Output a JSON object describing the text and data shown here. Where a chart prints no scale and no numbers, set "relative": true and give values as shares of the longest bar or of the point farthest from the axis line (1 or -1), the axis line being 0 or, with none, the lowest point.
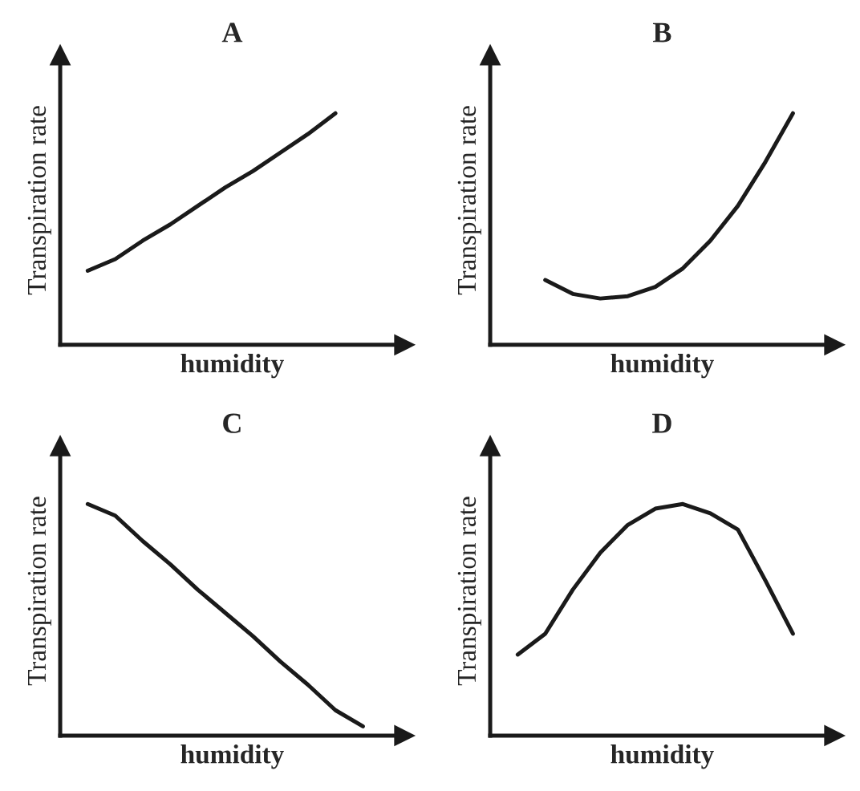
{
  "chart_data": [
    {
      "type": "line",
      "title": "A",
      "xlabel": "humidity",
      "ylabel": "Transpiration rate",
      "relative": true,
      "tick_labels": false,
      "categories": [
        null,
        null,
        null,
        null,
        null,
        null,
        null,
        null,
        null,
        null,
        null
      ],
      "series": [
        {
          "color": "#1a1a1a",
          "values": [
            0.32,
            0.37,
            0.45,
            0.52,
            0.6,
            0.68,
            0.75,
            0.83,
            0.91,
            1.0,
            null
          ]
        }
      ]
    },
    {
      "type": "line",
      "title": "B",
      "xlabel": "humidity",
      "ylabel": "Transpiration rate",
      "relative": true,
      "tick_labels": false,
      "categories": [
        null,
        null,
        null,
        null,
        null,
        null,
        null,
        null,
        null,
        null,
        null
      ],
      "series": [
        {
          "color": "#1a1a1a",
          "values": [
            null,
            0.28,
            0.22,
            0.2,
            0.21,
            0.25,
            0.33,
            0.45,
            0.6,
            0.79,
            1.0
          ]
        }
      ]
    },
    {
      "type": "line",
      "title": "C",
      "xlabel": "humidity",
      "ylabel": "Transpiration rate",
      "relative": true,
      "tick_labels": false,
      "categories": [
        null,
        null,
        null,
        null,
        null,
        null,
        null,
        null,
        null,
        null,
        null
      ],
      "series": [
        {
          "color": "#1a1a1a",
          "values": [
            1.0,
            0.95,
            0.84,
            0.74,
            0.63,
            0.53,
            0.43,
            0.32,
            0.22,
            0.11,
            0.04
          ]
        }
      ]
    },
    {
      "type": "line",
      "title": "D",
      "xlabel": "humidity",
      "ylabel": "Transpiration rate",
      "relative": true,
      "tick_labels": false,
      "categories": [
        null,
        null,
        null,
        null,
        null,
        null,
        null,
        null,
        null,
        null,
        null
      ],
      "series": [
        {
          "color": "#1a1a1a",
          "values": [
            0.35,
            0.44,
            0.63,
            0.79,
            0.91,
            0.98,
            1.0,
            0.96,
            0.89,
            0.67,
            0.44
          ]
        }
      ]
    }
  ]
}
